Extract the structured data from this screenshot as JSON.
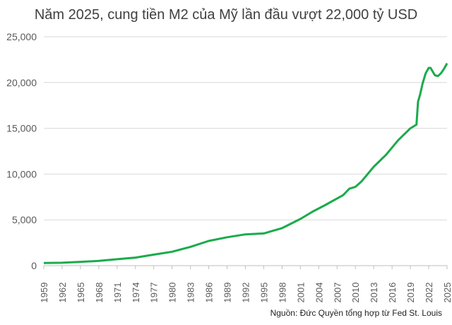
{
  "chart_data": {
    "type": "line",
    "title": "Năm 2025, cung tiền M2 của Mỹ lần đầu vượt 22,000 tỷ USD",
    "source": "Nguồn: Đức Quyền tổng hợp từ Fed St. Louis",
    "xlabel": "",
    "ylabel": "",
    "xlim": [
      1959,
      2025
    ],
    "ylim": [
      0,
      25000
    ],
    "yticks": [
      "0",
      "5,000",
      "10,000",
      "15,000",
      "20,000",
      "25,000"
    ],
    "xticks": [
      "1959",
      "1962",
      "1965",
      "1968",
      "1971",
      "1974",
      "1977",
      "1980",
      "1983",
      "1986",
      "1989",
      "1992",
      "1995",
      "1998",
      "2001",
      "2004",
      "2007",
      "2010",
      "2013",
      "2016",
      "2019",
      "2022",
      "2025"
    ],
    "grid": "horizontal",
    "color": "#1aab4b",
    "x": [
      1959,
      1962,
      1965,
      1968,
      1971,
      1974,
      1977,
      1980,
      1983,
      1986,
      1989,
      1992,
      1995,
      1998,
      2001,
      2003,
      2005,
      2008,
      2009,
      2010,
      2011,
      2013,
      2015,
      2017,
      2019,
      2020,
      2020.25,
      2020.6,
      2021,
      2021.5,
      2022,
      2022.3,
      2023,
      2023.5,
      2024,
      2024.5,
      2025
    ],
    "y": [
      290,
      320,
      420,
      520,
      700,
      880,
      1200,
      1520,
      2050,
      2700,
      3100,
      3420,
      3520,
      4100,
      5100,
      5900,
      6600,
      7700,
      8400,
      8600,
      9200,
      10800,
      12100,
      13700,
      15000,
      15400,
      17900,
      18700,
      19900,
      21000,
      21600,
      21600,
      20800,
      20700,
      21000,
      21500,
      22100
    ]
  }
}
